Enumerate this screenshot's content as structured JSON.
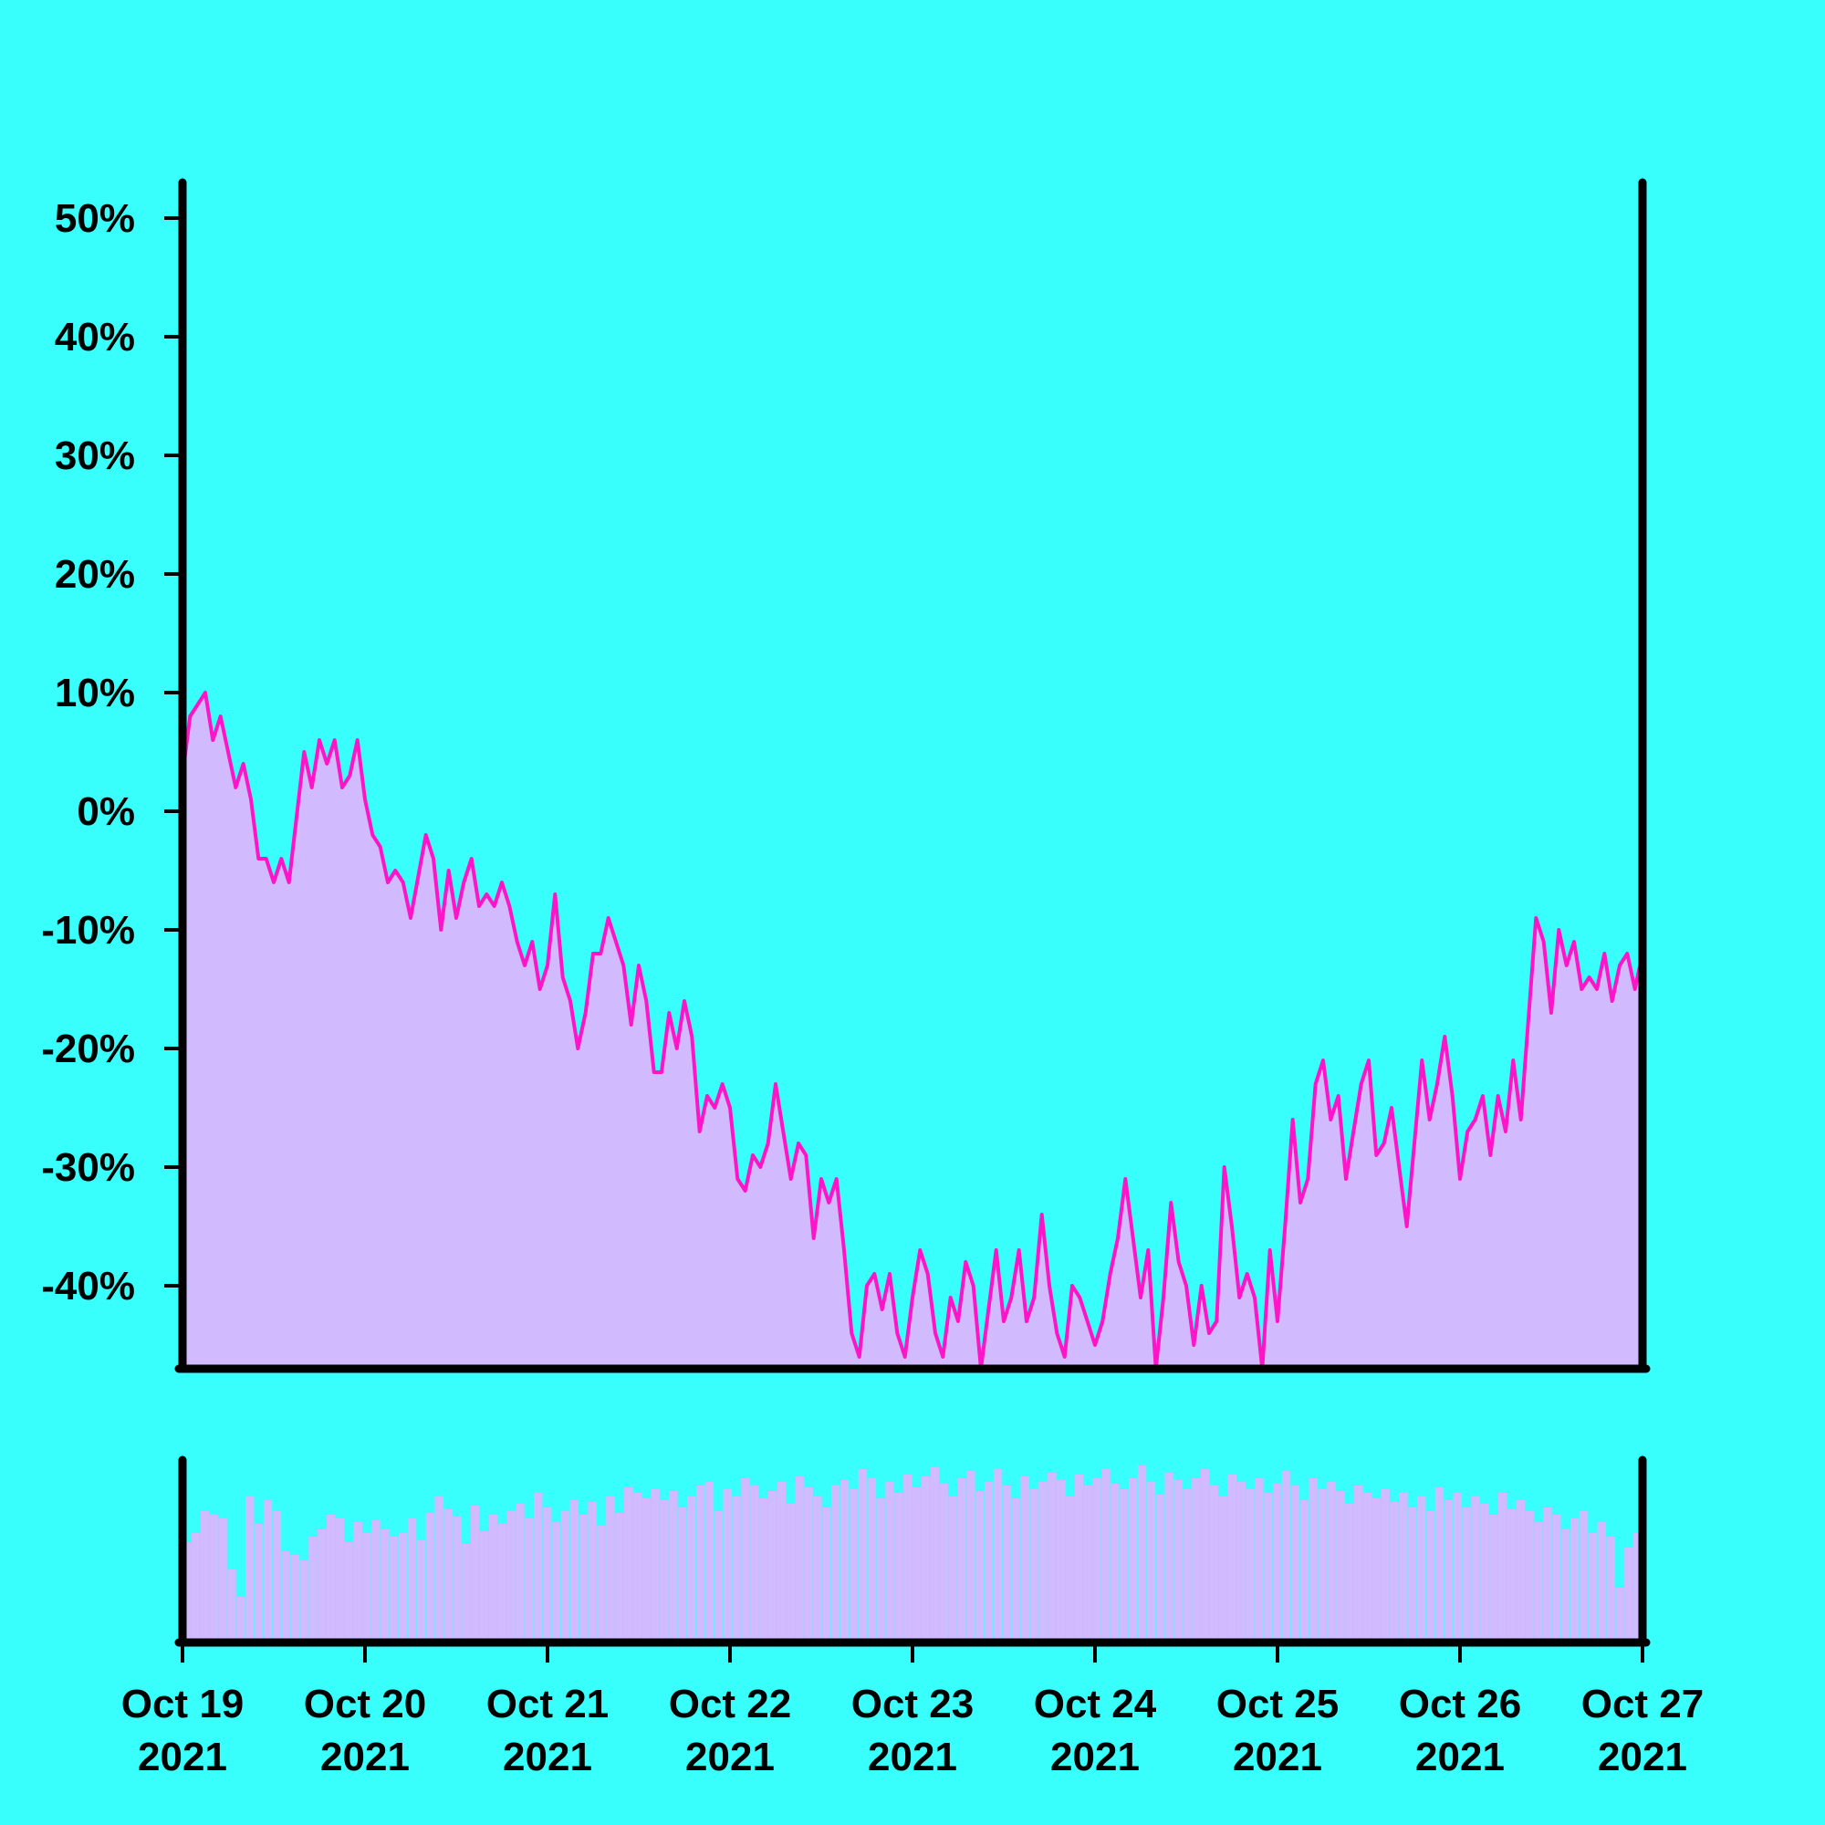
{
  "chart_data": {
    "type": "area",
    "colors": {
      "background": "#38FFFC",
      "line": "#FF14C8",
      "fill": "#D2BAFF",
      "axis": "#000000"
    },
    "x_range": [
      "2021-10-19",
      "2021-10-27"
    ],
    "ylim": [
      -47,
      53
    ],
    "y_ticks": [
      50,
      40,
      30,
      20,
      10,
      0,
      -10,
      -20,
      -30,
      -40
    ],
    "y_tick_labels": [
      "50%",
      "40%",
      "30%",
      "20%",
      "10%",
      "0%",
      "-10%",
      "-20%",
      "-30%",
      "-40%"
    ],
    "x_ticks": [
      "2021-10-19",
      "2021-10-20",
      "2021-10-21",
      "2021-10-22",
      "2021-10-23",
      "2021-10-24",
      "2021-10-25",
      "2021-10-26",
      "2021-10-27"
    ],
    "x_tick_labels": [
      {
        "month_day": "Oct 19",
        "year": "2021"
      },
      {
        "month_day": "Oct 20",
        "year": "2021"
      },
      {
        "month_day": "Oct 21",
        "year": "2021"
      },
      {
        "month_day": "Oct 22",
        "year": "2021"
      },
      {
        "month_day": "Oct 23",
        "year": "2021"
      },
      {
        "month_day": "Oct 24",
        "year": "2021"
      },
      {
        "month_day": "Oct 25",
        "year": "2021"
      },
      {
        "month_day": "Oct 26",
        "year": "2021"
      },
      {
        "month_day": "Oct 27",
        "year": "2021"
      }
    ],
    "series": [
      {
        "values": [
          [
            "2021-10-19T00:00",
            3
          ],
          [
            "2021-10-19T01:00",
            8
          ],
          [
            "2021-10-19T02:00",
            9
          ],
          [
            "2021-10-19T03:00",
            10
          ],
          [
            "2021-10-19T04:00",
            6
          ],
          [
            "2021-10-19T05:00",
            8
          ],
          [
            "2021-10-19T06:00",
            5
          ],
          [
            "2021-10-19T07:00",
            2
          ],
          [
            "2021-10-19T08:00",
            4
          ],
          [
            "2021-10-19T09:00",
            1
          ],
          [
            "2021-10-19T10:00",
            -4
          ],
          [
            "2021-10-19T11:00",
            -4
          ],
          [
            "2021-10-19T12:00",
            -6
          ],
          [
            "2021-10-19T13:00",
            -4
          ],
          [
            "2021-10-19T14:00",
            -6
          ],
          [
            "2021-10-19T16:00",
            5
          ],
          [
            "2021-10-19T17:00",
            2
          ],
          [
            "2021-10-19T18:00",
            6
          ],
          [
            "2021-10-19T19:00",
            4
          ],
          [
            "2021-10-19T20:00",
            6
          ],
          [
            "2021-10-19T21:00",
            2
          ],
          [
            "2021-10-19T22:00",
            3
          ],
          [
            "2021-10-19T23:00",
            6
          ],
          [
            "2021-10-20T00:00",
            1
          ],
          [
            "2021-10-20T01:00",
            -2
          ],
          [
            "2021-10-20T02:00",
            -3
          ],
          [
            "2021-10-20T03:00",
            -6
          ],
          [
            "2021-10-20T04:00",
            -5
          ],
          [
            "2021-10-20T05:00",
            -6
          ],
          [
            "2021-10-20T06:00",
            -9
          ],
          [
            "2021-10-20T08:00",
            -2
          ],
          [
            "2021-10-20T09:00",
            -4
          ],
          [
            "2021-10-20T10:00",
            -10
          ],
          [
            "2021-10-20T11:00",
            -5
          ],
          [
            "2021-10-20T12:00",
            -9
          ],
          [
            "2021-10-20T13:00",
            -6
          ],
          [
            "2021-10-20T14:00",
            -4
          ],
          [
            "2021-10-20T15:00",
            -8
          ],
          [
            "2021-10-20T16:00",
            -7
          ],
          [
            "2021-10-20T17:00",
            -8
          ],
          [
            "2021-10-20T18:00",
            -6
          ],
          [
            "2021-10-20T19:00",
            -8
          ],
          [
            "2021-10-20T20:00",
            -11
          ],
          [
            "2021-10-20T21:00",
            -13
          ],
          [
            "2021-10-20T22:00",
            -11
          ],
          [
            "2021-10-20T23:00",
            -15
          ],
          [
            "2021-10-21T00:00",
            -13
          ],
          [
            "2021-10-21T01:00",
            -7
          ],
          [
            "2021-10-21T02:00",
            -14
          ],
          [
            "2021-10-21T03:00",
            -16
          ],
          [
            "2021-10-21T04:00",
            -20
          ],
          [
            "2021-10-21T05:00",
            -17
          ],
          [
            "2021-10-21T06:00",
            -12
          ],
          [
            "2021-10-21T07:00",
            -12
          ],
          [
            "2021-10-21T08:00",
            -9
          ],
          [
            "2021-10-21T09:00",
            -11
          ],
          [
            "2021-10-21T10:00",
            -13
          ],
          [
            "2021-10-21T11:00",
            -18
          ],
          [
            "2021-10-21T12:00",
            -13
          ],
          [
            "2021-10-21T13:00",
            -16
          ],
          [
            "2021-10-21T14:00",
            -22
          ],
          [
            "2021-10-21T15:00",
            -22
          ],
          [
            "2021-10-21T16:00",
            -17
          ],
          [
            "2021-10-21T17:00",
            -20
          ],
          [
            "2021-10-21T18:00",
            -16
          ],
          [
            "2021-10-21T19:00",
            -19
          ],
          [
            "2021-10-21T20:00",
            -27
          ],
          [
            "2021-10-21T21:00",
            -24
          ],
          [
            "2021-10-21T22:00",
            -25
          ],
          [
            "2021-10-21T23:00",
            -23
          ],
          [
            "2021-10-22T00:00",
            -25
          ],
          [
            "2021-10-22T01:00",
            -31
          ],
          [
            "2021-10-22T02:00",
            -32
          ],
          [
            "2021-10-22T03:00",
            -29
          ],
          [
            "2021-10-22T04:00",
            -30
          ],
          [
            "2021-10-22T05:00",
            -28
          ],
          [
            "2021-10-22T06:00",
            -23
          ],
          [
            "2021-10-22T07:00",
            -27
          ],
          [
            "2021-10-22T08:00",
            -31
          ],
          [
            "2021-10-22T09:00",
            -28
          ],
          [
            "2021-10-22T10:00",
            -29
          ],
          [
            "2021-10-22T11:00",
            -36
          ],
          [
            "2021-10-22T12:00",
            -31
          ],
          [
            "2021-10-22T13:00",
            -33
          ],
          [
            "2021-10-22T14:00",
            -31
          ],
          [
            "2021-10-22T15:00",
            -37
          ],
          [
            "2021-10-22T16:00",
            -44
          ],
          [
            "2021-10-22T17:00",
            -46
          ],
          [
            "2021-10-22T18:00",
            -40
          ],
          [
            "2021-10-22T19:00",
            -39
          ],
          [
            "2021-10-22T20:00",
            -42
          ],
          [
            "2021-10-22T21:00",
            -39
          ],
          [
            "2021-10-22T22:00",
            -44
          ],
          [
            "2021-10-22T23:00",
            -46
          ],
          [
            "2021-10-23T00:00",
            -41
          ],
          [
            "2021-10-23T01:00",
            -37
          ],
          [
            "2021-10-23T02:00",
            -39
          ],
          [
            "2021-10-23T03:00",
            -44
          ],
          [
            "2021-10-23T04:00",
            -46
          ],
          [
            "2021-10-23T05:00",
            -41
          ],
          [
            "2021-10-23T06:00",
            -43
          ],
          [
            "2021-10-23T07:00",
            -38
          ],
          [
            "2021-10-23T08:00",
            -40
          ],
          [
            "2021-10-23T09:00",
            -47
          ],
          [
            "2021-10-23T10:00",
            -42
          ],
          [
            "2021-10-23T11:00",
            -37
          ],
          [
            "2021-10-23T12:00",
            -43
          ],
          [
            "2021-10-23T13:00",
            -41
          ],
          [
            "2021-10-23T14:00",
            -37
          ],
          [
            "2021-10-23T15:00",
            -43
          ],
          [
            "2021-10-23T16:00",
            -41
          ],
          [
            "2021-10-23T17:00",
            -34
          ],
          [
            "2021-10-23T18:00",
            -40
          ],
          [
            "2021-10-23T19:00",
            -44
          ],
          [
            "2021-10-23T20:00",
            -46
          ],
          [
            "2021-10-23T21:00",
            -40
          ],
          [
            "2021-10-23T22:00",
            -41
          ],
          [
            "2021-10-23T23:00",
            -43
          ],
          [
            "2021-10-24T00:00",
            -45
          ],
          [
            "2021-10-24T01:00",
            -43
          ],
          [
            "2021-10-24T02:00",
            -39
          ],
          [
            "2021-10-24T03:00",
            -36
          ],
          [
            "2021-10-24T04:00",
            -31
          ],
          [
            "2021-10-24T05:00",
            -36
          ],
          [
            "2021-10-24T06:00",
            -41
          ],
          [
            "2021-10-24T07:00",
            -37
          ],
          [
            "2021-10-24T08:00",
            -47
          ],
          [
            "2021-10-24T09:00",
            -41
          ],
          [
            "2021-10-24T10:00",
            -33
          ],
          [
            "2021-10-24T11:00",
            -38
          ],
          [
            "2021-10-24T12:00",
            -40
          ],
          [
            "2021-10-24T13:00",
            -45
          ],
          [
            "2021-10-24T14:00",
            -40
          ],
          [
            "2021-10-24T15:00",
            -44
          ],
          [
            "2021-10-24T16:00",
            -43
          ],
          [
            "2021-10-24T17:00",
            -30
          ],
          [
            "2021-10-24T18:00",
            -35
          ],
          [
            "2021-10-24T19:00",
            -41
          ],
          [
            "2021-10-24T20:00",
            -39
          ],
          [
            "2021-10-24T21:00",
            -41
          ],
          [
            "2021-10-24T22:00",
            -47
          ],
          [
            "2021-10-24T23:00",
            -37
          ],
          [
            "2021-10-25T00:00",
            -43
          ],
          [
            "2021-10-25T01:00",
            -35
          ],
          [
            "2021-10-25T02:00",
            -26
          ],
          [
            "2021-10-25T03:00",
            -33
          ],
          [
            "2021-10-25T04:00",
            -31
          ],
          [
            "2021-10-25T05:00",
            -23
          ],
          [
            "2021-10-25T06:00",
            -21
          ],
          [
            "2021-10-25T07:00",
            -26
          ],
          [
            "2021-10-25T08:00",
            -24
          ],
          [
            "2021-10-25T09:00",
            -31
          ],
          [
            "2021-10-25T10:00",
            -27
          ],
          [
            "2021-10-25T11:00",
            -23
          ],
          [
            "2021-10-25T12:00",
            -21
          ],
          [
            "2021-10-25T13:00",
            -29
          ],
          [
            "2021-10-25T14:00",
            -28
          ],
          [
            "2021-10-25T15:00",
            -25
          ],
          [
            "2021-10-25T16:00",
            -30
          ],
          [
            "2021-10-25T17:00",
            -35
          ],
          [
            "2021-10-25T19:00",
            -21
          ],
          [
            "2021-10-25T20:00",
            -26
          ],
          [
            "2021-10-25T21:00",
            -23
          ],
          [
            "2021-10-25T22:00",
            -19
          ],
          [
            "2021-10-25T23:00",
            -24
          ],
          [
            "2021-10-26T00:00",
            -31
          ],
          [
            "2021-10-26T01:00",
            -27
          ],
          [
            "2021-10-26T02:00",
            -26
          ],
          [
            "2021-10-26T03:00",
            -24
          ],
          [
            "2021-10-26T04:00",
            -29
          ],
          [
            "2021-10-26T05:00",
            -24
          ],
          [
            "2021-10-26T06:00",
            -27
          ],
          [
            "2021-10-26T07:00",
            -21
          ],
          [
            "2021-10-26T08:00",
            -26
          ],
          [
            "2021-10-26T10:00",
            -9
          ],
          [
            "2021-10-26T11:00",
            -11
          ],
          [
            "2021-10-26T12:00",
            -17
          ],
          [
            "2021-10-26T13:00",
            -10
          ],
          [
            "2021-10-26T14:00",
            -13
          ],
          [
            "2021-10-26T15:00",
            -11
          ],
          [
            "2021-10-26T16:00",
            -15
          ],
          [
            "2021-10-26T17:00",
            -14
          ],
          [
            "2021-10-26T18:00",
            -15
          ],
          [
            "2021-10-26T19:00",
            -12
          ],
          [
            "2021-10-26T20:00",
            -16
          ],
          [
            "2021-10-26T21:00",
            -13
          ],
          [
            "2021-10-26T22:00",
            -12
          ],
          [
            "2021-10-26T23:00",
            -15
          ],
          [
            "2021-10-27T00:00",
            -12
          ]
        ]
      }
    ],
    "volume": {
      "ylim": [
        0,
        100
      ],
      "values": [
        55,
        60,
        72,
        70,
        68,
        40,
        25,
        80,
        65,
        78,
        72,
        50,
        48,
        45,
        58,
        62,
        70,
        68,
        55,
        66,
        60,
        67,
        62,
        58,
        60,
        68,
        56,
        71,
        80,
        73,
        69,
        54,
        75,
        61,
        70,
        65,
        72,
        76,
        68,
        82,
        74,
        66,
        72,
        78,
        70,
        77,
        64,
        80,
        71,
        85,
        82,
        79,
        84,
        78,
        83,
        74,
        80,
        86,
        88,
        72,
        84,
        80,
        90,
        86,
        79,
        83,
        88,
        76,
        91,
        85,
        80,
        74,
        86,
        89,
        84,
        95,
        90,
        79,
        88,
        82,
        92,
        85,
        91,
        96,
        87,
        80,
        90,
        94,
        83,
        88,
        95,
        86,
        79,
        91,
        84,
        88,
        93,
        89,
        80,
        92,
        86,
        90,
        95,
        87,
        84,
        90,
        97,
        88,
        81,
        93,
        89,
        84,
        90,
        95,
        86,
        80,
        92,
        88,
        84,
        90,
        82,
        87,
        94,
        86,
        78,
        90,
        84,
        88,
        83,
        76,
        86,
        82,
        79,
        84,
        77,
        82,
        74,
        80,
        72,
        85,
        78,
        82,
        74,
        80,
        76,
        70,
        82,
        73,
        78,
        72,
        66,
        74,
        70,
        62,
        68,
        72,
        60,
        66,
        58,
        30,
        52,
        60
      ]
    }
  }
}
